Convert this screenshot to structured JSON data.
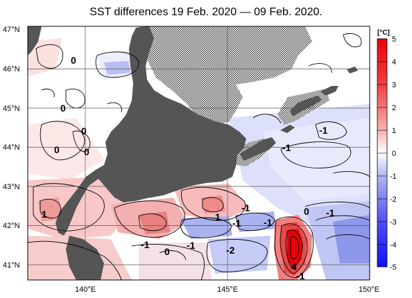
{
  "title": "SST differences 19 Feb. 2020 — 09 Feb. 2020.",
  "map": {
    "lat_labels": [
      "47°N",
      "46°N",
      "45°N",
      "44°N",
      "43°N",
      "42°N",
      "41°N"
    ],
    "lon_labels": [
      "140°E",
      "145°E",
      "150°E"
    ],
    "contour_labels": [
      "0",
      "0",
      "0",
      "0",
      "0",
      "-1",
      "-1",
      "1",
      "1",
      "-1",
      "-1",
      "-1",
      "-1",
      "-1",
      "-1",
      "0",
      "-2",
      "0",
      "4",
      "-1"
    ]
  },
  "colorbar": {
    "unit": "[°C]",
    "ticks": [
      "5",
      "4",
      "3",
      "2",
      "1",
      "0",
      "-1",
      "-2",
      "-3",
      "-4",
      "-5"
    ]
  },
  "colors": {
    "land": "#555555",
    "ice": "#dddddd",
    "max_warm": "#e8000b",
    "max_cold": "#1010ff"
  }
}
